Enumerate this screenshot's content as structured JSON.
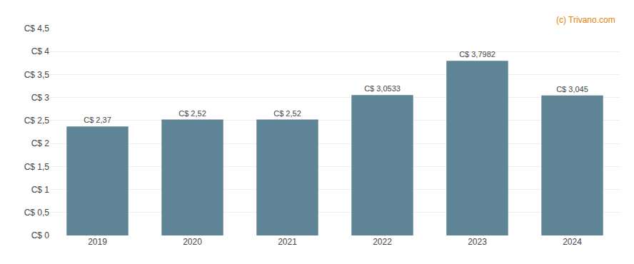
{
  "chart_data": {
    "type": "bar",
    "categories": [
      "2019",
      "2020",
      "2021",
      "2022",
      "2023",
      "2024"
    ],
    "values": [
      2.37,
      2.52,
      2.52,
      3.0533,
      3.7982,
      3.045
    ],
    "value_labels": [
      "C$ 2,37",
      "C$ 2,52",
      "C$ 2,52",
      "C$ 3,0533",
      "C$ 3,7982",
      "C$ 3,045"
    ],
    "data_labels": true,
    "color": "#5f8496",
    "ylim": [
      0,
      4.5
    ],
    "yticks": [
      {
        "value": 0,
        "label": "C$ 0"
      },
      {
        "value": 0.5,
        "label": "C$ 0,5"
      },
      {
        "value": 1.0,
        "label": "C$ 1"
      },
      {
        "value": 1.5,
        "label": "C$ 1,5"
      },
      {
        "value": 2.0,
        "label": "C$ 2"
      },
      {
        "value": 2.5,
        "label": "C$ 2,5"
      },
      {
        "value": 3.0,
        "label": "C$ 3"
      },
      {
        "value": 3.5,
        "label": "C$ 3,5"
      },
      {
        "value": 4.0,
        "label": "C$ 4"
      },
      {
        "value": 4.5,
        "label": "C$ 4,5"
      }
    ],
    "grid": true,
    "annotations": [
      {
        "text": "(c) Trivano.com",
        "color": "#e8820c"
      }
    ]
  }
}
